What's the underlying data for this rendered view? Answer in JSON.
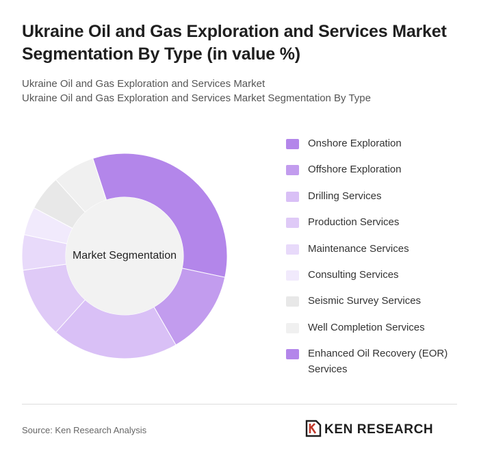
{
  "title": "Ukraine Oil and Gas Exploration and Services Market Segmentation By Type (in value %)",
  "subtitle_lines": [
    "Ukraine Oil and Gas Exploration and Services Market",
    "Ukraine Oil and Gas Exploration and Services Market Segmentation By Type"
  ],
  "source": "Source: Ken Research Analysis",
  "logo": {
    "text": "KEN RESEARCH",
    "icon": "ken-research-logo-icon"
  },
  "chart_data": {
    "type": "pie",
    "variant": "donut",
    "center_label": "Market Segmentation",
    "legend_placement": "right",
    "series": [
      {
        "name": "Onshore Exploration",
        "value": 30,
        "color": "#b386ea"
      },
      {
        "name": "Offshore Exploration",
        "value": 12,
        "color": "#c29cee"
      },
      {
        "name": "Drilling Services",
        "value": 18,
        "color": "#d9c0f6"
      },
      {
        "name": "Production Services",
        "value": 10,
        "color": "#dfcaf7"
      },
      {
        "name": "Maintenance Services",
        "value": 5,
        "color": "#e8dafa"
      },
      {
        "name": "Consulting Services",
        "value": 4,
        "color": "#f1eafc"
      },
      {
        "name": "Seismic Survey Services",
        "value": 5,
        "color": "#e8e8e8"
      },
      {
        "name": "Well Completion Services",
        "value": 6,
        "color": "#f0f0f0"
      },
      {
        "name": "Enhanced Oil Recovery (EOR) Services",
        "value": 0,
        "color": "#b386ea"
      }
    ]
  }
}
